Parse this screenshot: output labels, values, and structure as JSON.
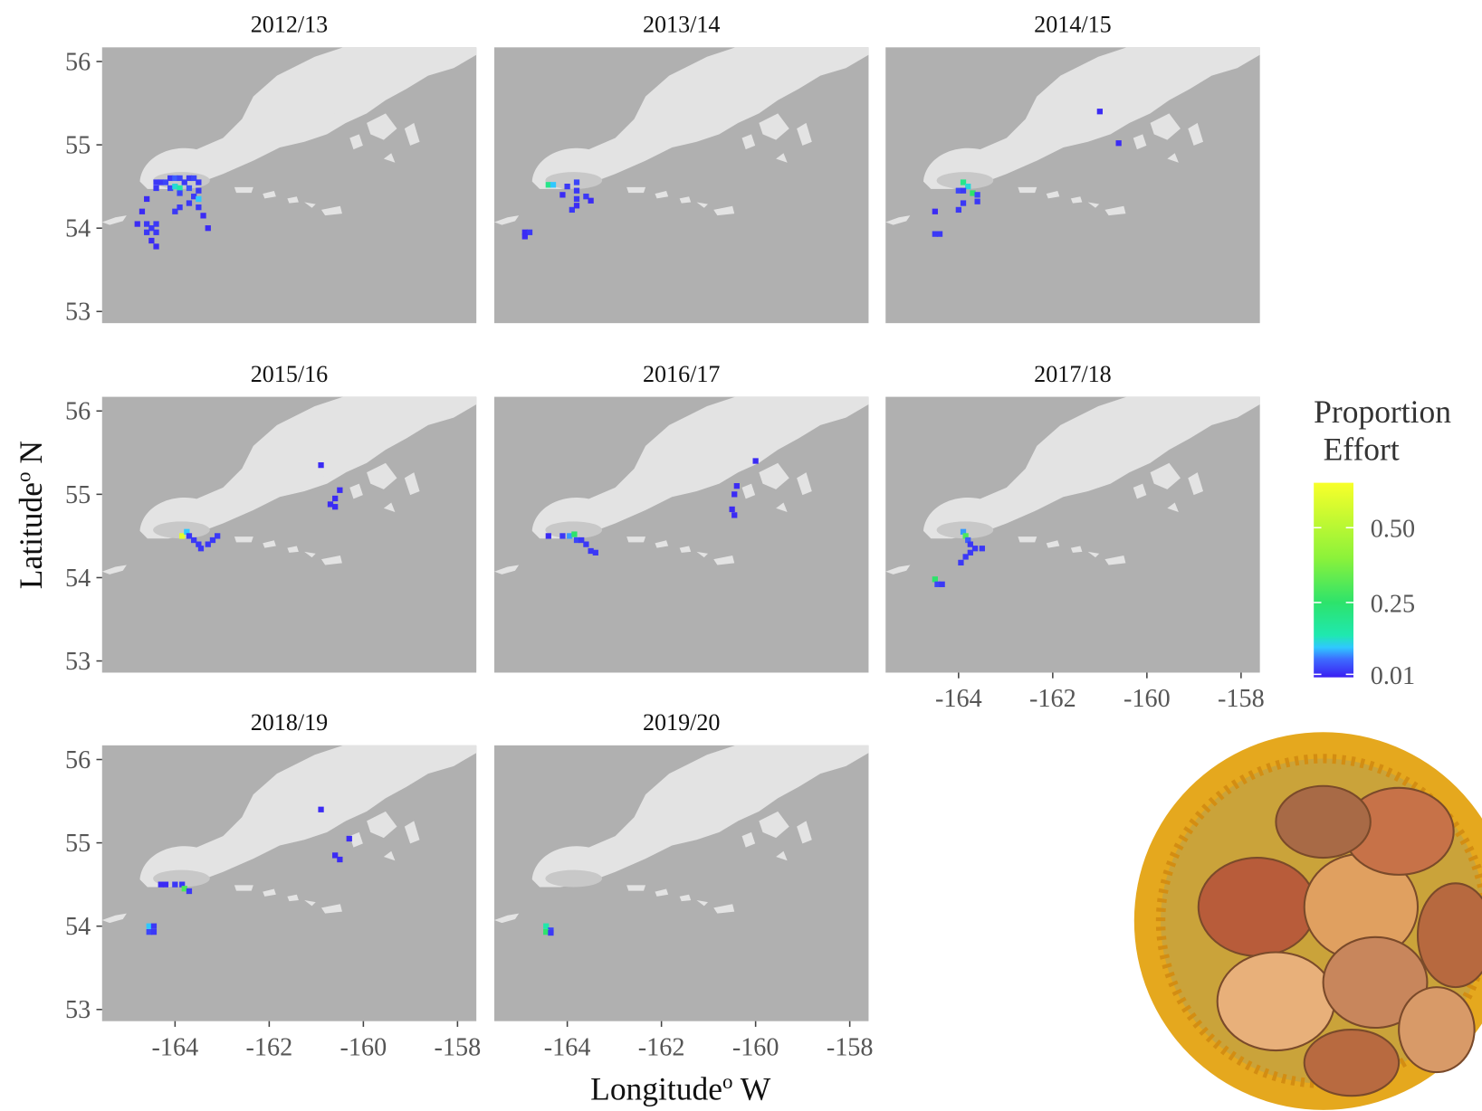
{
  "chart_data": {
    "type": "heatmap-map",
    "xlabel": [
      "Longitude",
      "o",
      " W"
    ],
    "ylabel": [
      "Latitude",
      "o",
      " N"
    ],
    "xlim": [
      -165.55,
      -157.6
    ],
    "ylim": [
      52.86,
      56.17
    ],
    "xticks": [
      -164,
      -162,
      -160,
      -158
    ],
    "yticks": [
      53,
      54,
      55,
      56
    ],
    "colorbar": {
      "title": [
        "Proportion",
        "Effort"
      ],
      "lim": [
        0,
        0.65
      ],
      "ticks": [
        0.01,
        0.25,
        {
          "value": 0.5,
          "label": "0.50"
        }
      ],
      "colors": [
        [
          0,
          "#3a1ef2"
        ],
        [
          0.06,
          "#3d6bff"
        ],
        [
          0.1,
          "#2fc8ff"
        ],
        [
          0.14,
          "#1fe8b0"
        ],
        [
          0.25,
          "#2de36b"
        ],
        [
          0.4,
          "#8cf23a"
        ],
        [
          0.65,
          "#f8ff2a"
        ]
      ]
    },
    "facets": [
      {
        "title": "2012/13",
        "lon": [
          -164.4,
          -164.3,
          -164.2,
          -164.1,
          -164.0,
          -163.9,
          -163.8,
          -163.7,
          -163.6,
          -163.5,
          -164.4,
          -164.1,
          -164.0,
          -163.9,
          -163.7,
          -163.5,
          -163.9,
          -163.6,
          -163.5,
          -163.7,
          -163.9,
          -164.0,
          -163.5,
          -163.4,
          -164.6,
          -164.7,
          -164.8,
          -164.6,
          -164.5,
          -164.4,
          -164.6,
          -164.4,
          -164.5,
          -164.4,
          -163.3
        ],
        "lat": [
          54.55,
          54.55,
          54.55,
          54.6,
          54.6,
          54.6,
          54.55,
          54.6,
          54.6,
          54.55,
          54.48,
          54.48,
          54.5,
          54.48,
          54.48,
          54.45,
          54.42,
          54.38,
          54.35,
          54.3,
          54.25,
          54.2,
          54.25,
          54.15,
          54.35,
          54.2,
          54.05,
          54.05,
          54.0,
          54.05,
          53.95,
          53.95,
          53.85,
          53.78,
          54.0
        ],
        "values": [
          0.02,
          0.02,
          0.03,
          0.02,
          0.05,
          0.03,
          0.02,
          0.02,
          0.03,
          0.02,
          0.02,
          0.03,
          0.12,
          0.15,
          0.04,
          0.02,
          0.03,
          0.02,
          0.1,
          0.02,
          0.02,
          0.02,
          0.02,
          0.01,
          0.01,
          0.01,
          0.01,
          0.02,
          0.02,
          0.02,
          0.02,
          0.02,
          0.01,
          0.01,
          0.01
        ]
      },
      {
        "title": "2013/14",
        "lon": [
          -164.4,
          -164.3,
          -164.0,
          -163.8,
          -163.8,
          -164.1,
          -163.8,
          -163.6,
          -163.5,
          -163.9,
          -163.8,
          -164.9,
          -164.8,
          -164.9
        ],
        "lat": [
          54.52,
          54.52,
          54.5,
          54.55,
          54.45,
          54.4,
          54.35,
          54.38,
          54.33,
          54.22,
          54.27,
          53.95,
          53.95,
          53.9
        ],
        "values": [
          0.2,
          0.1,
          0.02,
          0.03,
          0.02,
          0.01,
          0.02,
          0.02,
          0.01,
          0.02,
          0.01,
          0.01,
          0.02,
          0.01
        ]
      },
      {
        "title": "2014/15",
        "lon": [
          -163.9,
          -163.8,
          -164.0,
          -163.9,
          -163.7,
          -163.6,
          -163.6,
          -163.9,
          -164.0,
          -164.5,
          -164.5,
          -164.4,
          -161.0,
          -160.6
        ],
        "lat": [
          54.55,
          54.5,
          54.45,
          54.45,
          54.42,
          54.4,
          54.32,
          54.3,
          54.22,
          54.2,
          53.93,
          53.93,
          55.4,
          55.02
        ],
        "values": [
          0.2,
          0.12,
          0.03,
          0.02,
          0.25,
          0.03,
          0.02,
          0.02,
          0.02,
          0.01,
          0.02,
          0.02,
          0.01,
          0.01
        ]
      },
      {
        "title": "2015/16",
        "lon": [
          -163.85,
          -163.75,
          -163.7,
          -163.6,
          -163.5,
          -163.45,
          -163.3,
          -163.2,
          -163.1,
          -160.9,
          -160.5,
          -160.6,
          -160.7,
          -160.6
        ],
        "lat": [
          54.5,
          54.55,
          54.5,
          54.45,
          54.4,
          54.35,
          54.4,
          54.45,
          54.5,
          55.35,
          55.05,
          54.95,
          54.88,
          54.85
        ],
        "values": [
          0.6,
          0.1,
          0.02,
          0.02,
          0.02,
          0.02,
          0.02,
          0.02,
          0.02,
          0.01,
          0.01,
          0.01,
          0.01,
          0.01
        ]
      },
      {
        "title": "2016/17",
        "lon": [
          -164.4,
          -164.1,
          -163.95,
          -163.85,
          -163.8,
          -163.7,
          -163.6,
          -163.5,
          -163.4,
          -160.4,
          -160.45,
          -160.5,
          -160.45,
          -160.0
        ],
        "lat": [
          54.5,
          54.5,
          54.5,
          54.52,
          54.45,
          54.45,
          54.4,
          54.32,
          54.3,
          55.1,
          55.0,
          54.82,
          54.75,
          55.4
        ],
        "values": [
          0.01,
          0.02,
          0.08,
          0.25,
          0.03,
          0.02,
          0.02,
          0.02,
          0.02,
          0.01,
          0.01,
          0.01,
          0.01,
          0.01
        ]
      },
      {
        "title": "2017/18",
        "lon": [
          -163.9,
          -163.85,
          -163.8,
          -163.75,
          -163.65,
          -163.5,
          -163.75,
          -163.85,
          -163.95,
          -164.5,
          -164.45,
          -164.35
        ],
        "lat": [
          54.55,
          54.5,
          54.45,
          54.4,
          54.35,
          54.35,
          54.3,
          54.25,
          54.18,
          53.98,
          53.92,
          53.92
        ],
        "values": [
          0.08,
          0.3,
          0.05,
          0.02,
          0.02,
          0.02,
          0.02,
          0.02,
          0.02,
          0.25,
          0.03,
          0.02
        ]
      },
      {
        "title": "2018/19",
        "lon": [
          -164.3,
          -164.2,
          -164.0,
          -163.85,
          -163.8,
          -163.7,
          -164.55,
          -164.45,
          -164.55,
          -164.45,
          -160.9,
          -160.3,
          -160.6,
          -160.5
        ],
        "lat": [
          54.5,
          54.5,
          54.5,
          54.5,
          54.45,
          54.42,
          54.0,
          54.0,
          53.93,
          53.93,
          55.4,
          55.05,
          54.85,
          54.8
        ],
        "values": [
          0.01,
          0.01,
          0.02,
          0.02,
          0.3,
          0.02,
          0.1,
          0.02,
          0.03,
          0.02,
          0.01,
          0.01,
          0.01,
          0.01
        ]
      },
      {
        "title": "2019/20",
        "lon": [
          -164.45,
          -164.35,
          -164.45,
          -164.35
        ],
        "lat": [
          54.0,
          53.95,
          53.93,
          53.92
        ],
        "values": [
          0.15,
          0.03,
          0.25,
          0.02
        ]
      }
    ]
  }
}
